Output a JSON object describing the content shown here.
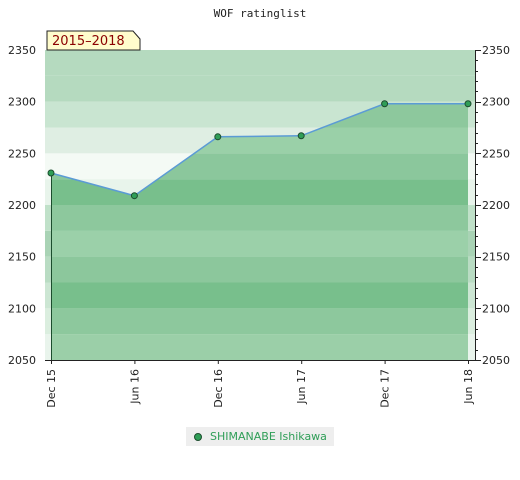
{
  "chart_data": {
    "type": "area",
    "title": "WOF ratinglist",
    "period_label": "2015–2018",
    "categories": [
      "Dec 15",
      "Jun 16",
      "Dec 16",
      "Jun 17",
      "Dec 17",
      "Jun 18"
    ],
    "yticks": [
      "2050",
      "2100",
      "2150",
      "2200",
      "2250",
      "2300",
      "2350"
    ],
    "ylim": [
      2050,
      2350
    ],
    "series": [
      {
        "name": "SHIMANABE Ishikawa",
        "values": [
          2231,
          2209,
          2266,
          2267,
          2298,
          2298
        ],
        "line_color": "#5b9bd5",
        "marker_color": "#2f9e57"
      }
    ],
    "legend_position": "bottom-center",
    "grid": true
  }
}
